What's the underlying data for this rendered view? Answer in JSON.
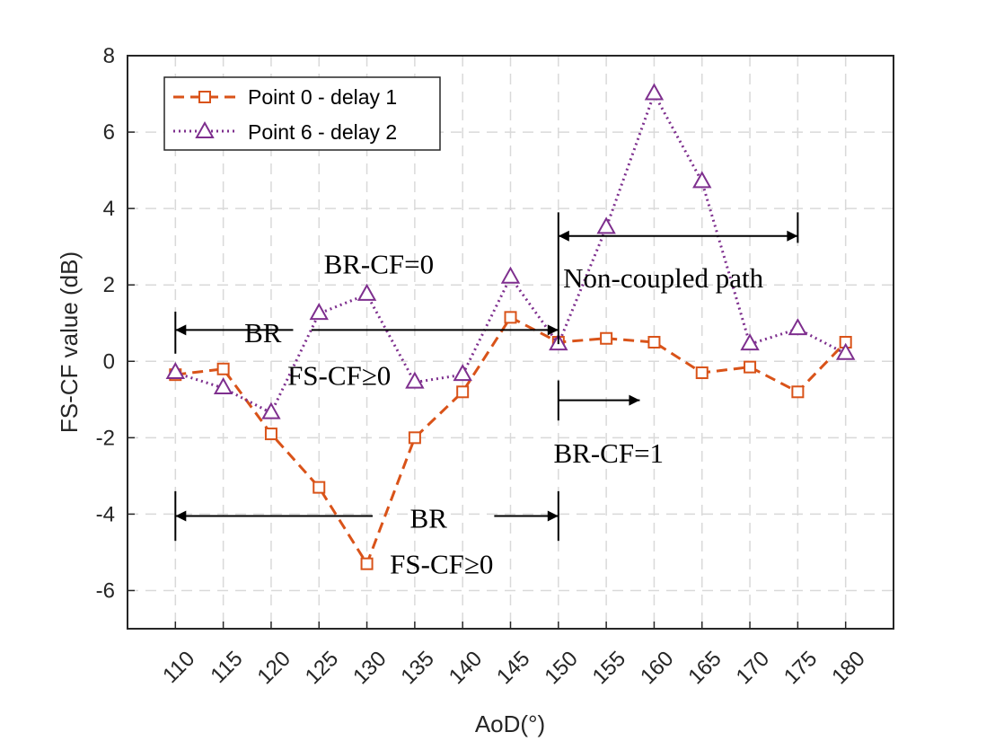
{
  "chart_data": {
    "type": "line",
    "title": "",
    "xlabel": "AoD(°)",
    "ylabel": "FS-CF value (dB)",
    "x": [
      110,
      115,
      120,
      125,
      130,
      135,
      140,
      145,
      150,
      155,
      160,
      165,
      170,
      175,
      180
    ],
    "xlim": [
      105,
      185
    ],
    "ylim": [
      -7,
      8
    ],
    "xticks": [
      "110",
      "115",
      "120",
      "125",
      "130",
      "135",
      "140",
      "145",
      "150",
      "155",
      "160",
      "165",
      "170",
      "175",
      "180"
    ],
    "yticks": [
      "8",
      "6",
      "4",
      "2",
      "0",
      "-2",
      "-4",
      "-6"
    ],
    "grid": true,
    "legend_position": "top-left",
    "series": [
      {
        "name": "Point 0 - delay 1",
        "color": "#D95319",
        "marker": "square",
        "line_style": "dashed",
        "values": [
          -0.35,
          -0.2,
          -1.9,
          -3.3,
          -5.3,
          -2.0,
          -0.8,
          1.15,
          0.5,
          0.6,
          0.5,
          -0.3,
          -0.15,
          -0.8,
          0.5
        ]
      },
      {
        "name": "Point 6 - delay 2",
        "color": "#7E2F8E",
        "marker": "triangle",
        "line_style": "dotted",
        "values": [
          -0.3,
          -0.7,
          -1.35,
          1.25,
          1.75,
          -0.55,
          -0.35,
          2.2,
          0.45,
          3.5,
          7.0,
          4.7,
          0.45,
          0.85,
          0.2
        ]
      }
    ],
    "annotations": [
      {
        "text": "BR-CF=0"
      },
      {
        "text": "BR"
      },
      {
        "text": "FS-CF≥0"
      },
      {
        "text": "Non-coupled path"
      },
      {
        "text": "BR-CF=1"
      },
      {
        "text": "BR"
      },
      {
        "text": "FS-CF≥0"
      }
    ]
  }
}
